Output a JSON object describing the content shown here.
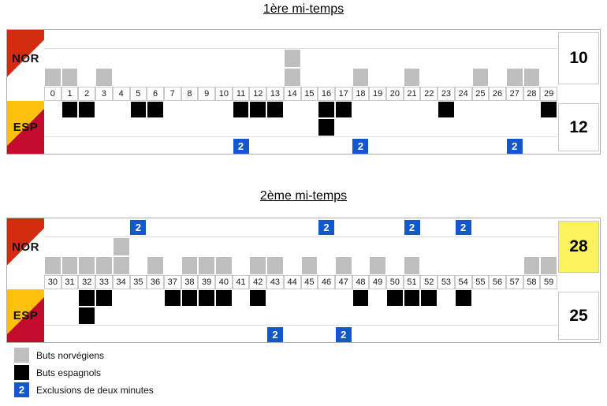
{
  "colors": {
    "nor_goal": "#bfbfbf",
    "esp_goal": "#000000",
    "exclusion": "#1257cc",
    "score_highlight": "#fbf35e",
    "nor_flag_upper": "#d22c0f",
    "nor_flag_lower": "#ffffff",
    "esp_flag_upper": "#fdc00d",
    "esp_flag_lower": "#c30b2e",
    "band_border": "#adadad",
    "cell_border": "#c9c9c9",
    "row_separator": "#dcdcdc"
  },
  "exclusion_mark": "2",
  "legend": [
    {
      "label": "Buts norvégiens",
      "swatch": "nor-goal"
    },
    {
      "label": "Buts espagnols",
      "swatch": "esp-goal"
    },
    {
      "label": "Exclusions de deux minutes",
      "swatch": "exclusion"
    }
  ],
  "chart_data": {
    "type": "heatmap",
    "subtype": "handball-match-minute-timeline",
    "teams": {
      "nor": {
        "label": "NOR"
      },
      "esp": {
        "label": "ESP"
      }
    },
    "halves": [
      {
        "title": "1ère mi-temps",
        "minutes": [
          0,
          1,
          2,
          3,
          4,
          5,
          6,
          7,
          8,
          9,
          10,
          11,
          12,
          13,
          14,
          15,
          16,
          17,
          18,
          19,
          20,
          21,
          22,
          23,
          24,
          25,
          26,
          27,
          28,
          29
        ],
        "nor": {
          "score": "10",
          "score_highlight": false,
          "goals_by_minute": {
            "0": 1,
            "1": 1,
            "3": 1,
            "14": 2,
            "18": 1,
            "21": 1,
            "25": 1,
            "27": 1,
            "28": 1
          },
          "exclusion_minutes": []
        },
        "esp": {
          "score": "12",
          "score_highlight": false,
          "goals_by_minute": {
            "1": 1,
            "2": 1,
            "5": 1,
            "6": 1,
            "11": 1,
            "12": 1,
            "13": 1,
            "16": 2,
            "17": 1,
            "23": 1,
            "29": 1
          },
          "exclusion_minutes": [
            11,
            18,
            27
          ]
        }
      },
      {
        "title": "2ème mi-temps",
        "minutes": [
          30,
          31,
          32,
          33,
          34,
          35,
          36,
          37,
          38,
          39,
          40,
          41,
          42,
          43,
          44,
          45,
          46,
          47,
          48,
          49,
          50,
          51,
          52,
          53,
          54,
          55,
          56,
          57,
          58,
          59
        ],
        "nor": {
          "score": "28",
          "score_highlight": true,
          "goals_by_minute": {
            "30": 1,
            "31": 1,
            "32": 1,
            "33": 1,
            "34": 2,
            "36": 1,
            "38": 1,
            "39": 1,
            "40": 1,
            "42": 1,
            "43": 1,
            "45": 1,
            "47": 1,
            "49": 1,
            "51": 1,
            "58": 1,
            "59": 1
          },
          "exclusion_minutes": [
            35,
            46,
            51,
            54
          ]
        },
        "esp": {
          "score": "25",
          "score_highlight": false,
          "goals_by_minute": {
            "32": 2,
            "33": 1,
            "37": 1,
            "38": 1,
            "39": 1,
            "40": 1,
            "42": 1,
            "48": 1,
            "50": 1,
            "51": 1,
            "52": 1,
            "54": 1
          },
          "exclusion_minutes": [
            43,
            47
          ]
        }
      }
    ]
  }
}
